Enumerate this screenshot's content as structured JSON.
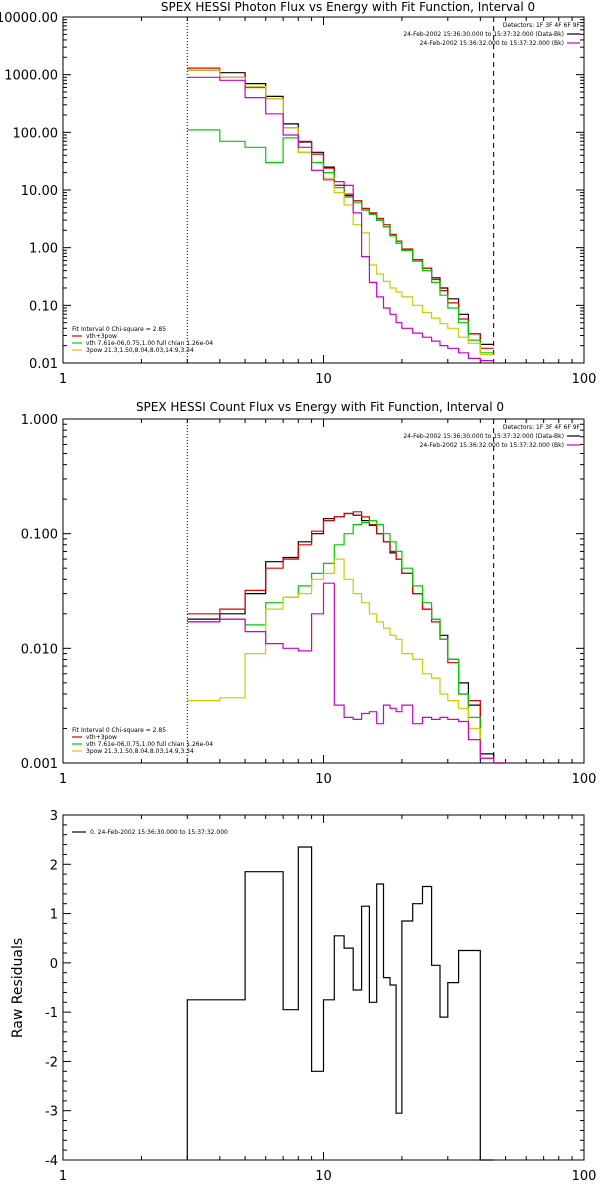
{
  "chart_data": [
    {
      "type": "line",
      "step": true,
      "title": "SPEX HESSI Photon Flux vs Energy with Fit Function, Interval 0",
      "xlabel": "",
      "ylabel": "",
      "xscale": "log",
      "yscale": "log",
      "xlim": [
        1,
        100
      ],
      "ylim": [
        0.01,
        10000
      ],
      "x_ticks": [
        {
          "v": 1,
          "label": "1"
        },
        {
          "v": 10,
          "label": "10"
        },
        {
          "v": 100,
          "label": "100"
        }
      ],
      "y_ticks": [
        {
          "v": 10000,
          "label": "10000.00"
        },
        {
          "v": 1000,
          "label": "1000.00"
        },
        {
          "v": 100,
          "label": "100.00"
        },
        {
          "v": 10,
          "label": "10.00"
        },
        {
          "v": 1,
          "label": "1.00"
        },
        {
          "v": 0.1,
          "label": "0.10"
        },
        {
          "v": 0.01,
          "label": "0.01"
        }
      ],
      "vlines": [
        {
          "x": 3,
          "style": "dotted"
        },
        {
          "x": 45,
          "style": "dashed"
        }
      ],
      "legend_position": "top-right",
      "legend": [
        {
          "text": "Detectors: 1F 3F 4F 6F 9F",
          "color": ""
        },
        {
          "text": "24-Feb-2002 15:36:30.000 to 15:37:32.000 (Data-Bk)",
          "color": "#000000"
        },
        {
          "text": "24-Feb-2002 15:36:32.000 to 15:37:32.000 (Bk)",
          "color": "#cc00cc"
        }
      ],
      "fit_legend_position": "bottom-left",
      "fit_legend": [
        {
          "text": "Fit Interval 0   Chi-square = 2.85",
          "color": ""
        },
        {
          "text": "vth+3pow",
          "color": "#e00000"
        },
        {
          "text": "vth 7.61e-06,0.75,1.00   full chian 1.26e-04",
          "color": "#00cc00"
        },
        {
          "text": "3pow 21.3,1.50,8.04,8.03,14.9,3.34",
          "color": "#cccc00"
        }
      ],
      "bin_edges": [
        3,
        4,
        5,
        6,
        7,
        8,
        9,
        10,
        11,
        12,
        13,
        14,
        15,
        16,
        17,
        18,
        19,
        20,
        22,
        24,
        26,
        28,
        30,
        33,
        36,
        40,
        45
      ],
      "series": [
        {
          "name": "Data-Bk",
          "color": "#000000",
          "values": [
            1200,
            1080,
            700,
            420,
            140,
            68,
            45,
            25,
            12,
            8,
            6.5,
            4.5,
            3.8,
            3.0,
            2.3,
            1.6,
            1.2,
            0.9,
            0.62,
            0.44,
            0.3,
            0.2,
            0.13,
            0.07,
            0.032,
            0.021
          ]
        },
        {
          "name": "vth+3pow",
          "color": "#e00000",
          "values": [
            1300,
            900,
            600,
            380,
            120,
            70,
            42,
            24,
            12,
            8.5,
            6.5,
            4.8,
            4.0,
            3.2,
            2.5,
            1.7,
            1.3,
            0.95,
            0.62,
            0.44,
            0.28,
            0.18,
            0.11,
            0.058,
            0.032,
            0.018
          ]
        },
        {
          "name": "vth",
          "color": "#00cc00",
          "values": [
            110,
            70,
            55,
            30,
            80,
            45,
            30,
            20,
            11,
            7.5,
            6.0,
            4.5,
            3.8,
            3.0,
            2.3,
            1.6,
            1.2,
            0.9,
            0.58,
            0.4,
            0.25,
            0.15,
            0.09,
            0.05,
            0.025,
            0.015
          ]
        },
        {
          "name": "3pow",
          "color": "#cccc00",
          "values": [
            1200,
            900,
            620,
            380,
            120,
            45,
            22,
            16,
            9,
            5.5,
            2.5,
            1.8,
            0.5,
            0.35,
            0.26,
            0.2,
            0.17,
            0.14,
            0.1,
            0.075,
            0.06,
            0.048,
            0.04,
            0.028,
            0.022,
            0.014
          ]
        },
        {
          "name": "Bk",
          "color": "#cc00cc",
          "values": [
            900,
            800,
            400,
            210,
            90,
            55,
            22,
            15,
            14,
            12,
            4.0,
            0.7,
            0.25,
            0.14,
            0.09,
            0.07,
            0.05,
            0.04,
            0.033,
            0.028,
            0.024,
            0.02,
            0.018,
            0.015,
            0.012,
            0.011
          ]
        }
      ]
    },
    {
      "type": "line",
      "step": true,
      "title": "SPEX HESSI Count Flux vs Energy with Fit Function, Interval 0",
      "xlabel": "",
      "ylabel": "",
      "xscale": "log",
      "yscale": "log",
      "xlim": [
        1,
        100
      ],
      "ylim": [
        0.001,
        1
      ],
      "x_ticks": [
        {
          "v": 1,
          "label": "1"
        },
        {
          "v": 10,
          "label": "10"
        },
        {
          "v": 100,
          "label": "100"
        }
      ],
      "y_ticks": [
        {
          "v": 1,
          "label": "1.000"
        },
        {
          "v": 0.1,
          "label": "0.100"
        },
        {
          "v": 0.01,
          "label": "0.010"
        },
        {
          "v": 0.001,
          "label": "0.001"
        }
      ],
      "vlines": [
        {
          "x": 3,
          "style": "dotted"
        },
        {
          "x": 45,
          "style": "dashed"
        }
      ],
      "legend_position": "top-right",
      "legend": [
        {
          "text": "Detectors: 1F 3F 4F 6F 9F",
          "color": ""
        },
        {
          "text": "24-Feb-2002 15:36:30.000 to 15:37:32.000 (Data-Bk)",
          "color": "#000000"
        },
        {
          "text": "24-Feb-2002 15:36:32.000 to 15:37:32.000 (Bk)",
          "color": "#cc00cc"
        }
      ],
      "fit_legend_position": "bottom-left",
      "fit_legend": [
        {
          "text": "Fit Interval 0   Chi-square = 2.85",
          "color": ""
        },
        {
          "text": "vth+3pow",
          "color": "#e00000"
        },
        {
          "text": "vth 7.61e-06,0.75,1.00   full chian 1.26e-04",
          "color": "#00cc00"
        },
        {
          "text": "3pow 21.3,1.50,8.04,8.03,14.9,3.34",
          "color": "#cccc00"
        }
      ],
      "bin_edges": [
        3,
        4,
        5,
        6,
        7,
        8,
        9,
        10,
        11,
        12,
        13,
        14,
        15,
        16,
        17,
        18,
        19,
        20,
        22,
        24,
        26,
        28,
        30,
        33,
        36,
        40,
        45,
        50
      ],
      "series": [
        {
          "name": "Data-Bk",
          "color": "#000000",
          "values": [
            0.018,
            0.02,
            0.03,
            0.057,
            0.062,
            0.085,
            0.1,
            0.135,
            0.14,
            0.15,
            0.145,
            0.13,
            0.118,
            0.1,
            0.085,
            0.068,
            0.06,
            0.045,
            0.03,
            0.022,
            0.018,
            0.013,
            0.008,
            0.005,
            0.0032,
            0.0012,
            0.0009
          ]
        },
        {
          "name": "vth+3pow",
          "color": "#e00000",
          "values": [
            0.02,
            0.022,
            0.032,
            0.05,
            0.06,
            0.08,
            0.105,
            0.13,
            0.14,
            0.15,
            0.155,
            0.14,
            0.12,
            0.1,
            0.085,
            0.07,
            0.06,
            0.045,
            0.03,
            0.022,
            0.017,
            0.012,
            0.0075,
            0.004,
            0.0035,
            0.0011,
            0.0009
          ]
        },
        {
          "name": "vth",
          "color": "#00cc00",
          "values": [
            0.017,
            0.018,
            0.016,
            0.025,
            0.028,
            0.035,
            0.045,
            0.055,
            0.08,
            0.1,
            0.12,
            0.125,
            0.13,
            0.12,
            0.1,
            0.085,
            0.07,
            0.05,
            0.035,
            0.025,
            0.018,
            0.012,
            0.008,
            0.004,
            0.0025,
            0.0011,
            0.0009
          ]
        },
        {
          "name": "3pow",
          "color": "#cccc00",
          "values": [
            0.0035,
            0.0037,
            0.009,
            0.022,
            0.028,
            0.03,
            0.04,
            0.045,
            0.06,
            0.04,
            0.03,
            0.025,
            0.02,
            0.017,
            0.015,
            0.013,
            0.012,
            0.009,
            0.008,
            0.006,
            0.0055,
            0.004,
            0.0035,
            0.003,
            0.002,
            0.0011,
            0.0009
          ]
        },
        {
          "name": "Bk",
          "color": "#cc00cc",
          "values": [
            0.017,
            0.018,
            0.014,
            0.011,
            0.01,
            0.0095,
            0.02,
            0.037,
            0.0032,
            0.0025,
            0.0024,
            0.0027,
            0.0028,
            0.0022,
            0.0032,
            0.003,
            0.0028,
            0.0032,
            0.0022,
            0.0025,
            0.0024,
            0.0025,
            0.0024,
            0.0023,
            0.0016,
            0.0011,
            0.0009
          ]
        }
      ]
    },
    {
      "type": "line",
      "step": true,
      "title": "",
      "xlabel": "",
      "ylabel": "Raw Residuals",
      "xscale": "log",
      "yscale": "linear",
      "xlim": [
        1,
        100
      ],
      "ylim": [
        -4,
        3
      ],
      "x_ticks": [
        {
          "v": 1,
          "label": "1"
        },
        {
          "v": 10,
          "label": "10"
        },
        {
          "v": 100,
          "label": "100"
        }
      ],
      "y_ticks": [
        {
          "v": 3,
          "label": "3"
        },
        {
          "v": 2,
          "label": "2"
        },
        {
          "v": 1,
          "label": "1"
        },
        {
          "v": 0,
          "label": "0"
        },
        {
          "v": -1,
          "label": "-1"
        },
        {
          "v": -2,
          "label": "-2"
        },
        {
          "v": -3,
          "label": "-3"
        },
        {
          "v": -4,
          "label": "-4"
        }
      ],
      "legend_position": "top-left",
      "legend": [
        {
          "text": "0. 24-Feb-2002 15:36:30.000 to 15:37:32.000",
          "color": "#000000"
        }
      ],
      "bin_edges": [
        3,
        4,
        5,
        6,
        7,
        8,
        9,
        10,
        11,
        12,
        13,
        14,
        15,
        16,
        17,
        18,
        19,
        20,
        22,
        24,
        26,
        28,
        30,
        33,
        36,
        40,
        45
      ],
      "series": [
        {
          "name": "0. 24-Feb-2002 15:36:30.000 to 15:37:32.000",
          "color": "#000000",
          "values": [
            -0.75,
            -0.75,
            1.85,
            1.85,
            -0.95,
            2.35,
            -2.2,
            -0.75,
            0.55,
            0.3,
            -0.55,
            1.15,
            -0.8,
            1.6,
            -0.3,
            -0.45,
            -3.05,
            0.85,
            1.2,
            1.55,
            -0.05,
            -1.1,
            -0.4,
            0.25,
            0.25,
            -4.0
          ]
        }
      ]
    }
  ]
}
